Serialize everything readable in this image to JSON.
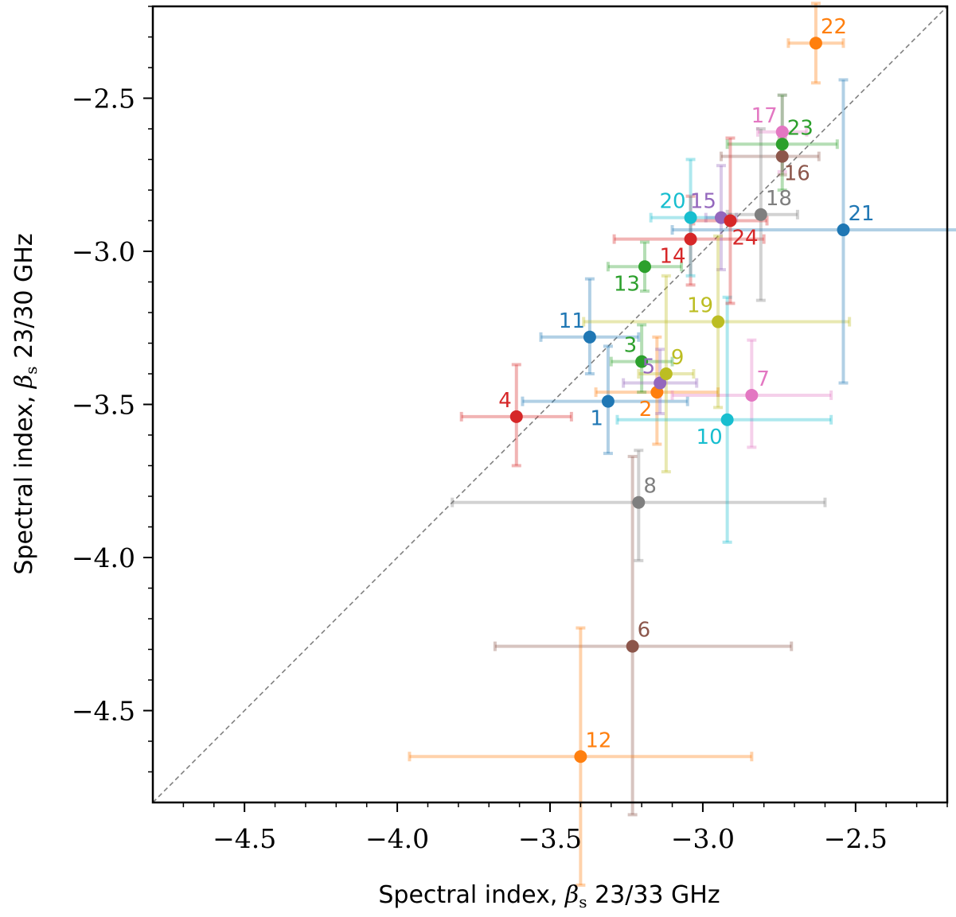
{
  "chart_data": {
    "type": "scatter",
    "xlabel": "Spectral index, β_s 23/33 GHz",
    "ylabel": "Spectral index, β_s 23/30 GHz",
    "xlim": [
      -4.8,
      -2.2
    ],
    "ylim": [
      -4.8,
      -2.2
    ],
    "x_ticks": [
      -4.5,
      -4.0,
      -3.5,
      -3.0,
      -2.5
    ],
    "y_ticks": [
      -4.5,
      -4.0,
      -3.5,
      -3.0,
      -2.5
    ],
    "x_tick_labels": [
      "−4.5",
      "−4.0",
      "−3.5",
      "−3.0",
      "−2.5"
    ],
    "y_tick_labels": [
      "−4.5",
      "−4.0",
      "−3.5",
      "−3.0",
      "−2.5"
    ],
    "reference_line": "y = x (dashed grey)",
    "grid": false,
    "points": [
      {
        "label": "1",
        "x": -3.31,
        "xerr_lo": 0.28,
        "xerr_hi": 0.26,
        "y": -3.49,
        "yerr_lo": 0.17,
        "yerr_hi": 0.18,
        "color": "#1f77b4",
        "label_pos": "bottom-left"
      },
      {
        "label": "2",
        "x": -3.15,
        "xerr_lo": 0.2,
        "xerr_hi": 0.2,
        "y": -3.46,
        "yerr_lo": 0.17,
        "yerr_hi": 0.18,
        "color": "#ff7f0e",
        "label_pos": "bottom-left"
      },
      {
        "label": "3",
        "x": -3.2,
        "xerr_lo": 0.1,
        "xerr_hi": 0.1,
        "y": -3.36,
        "yerr_lo": 0.1,
        "yerr_hi": 0.12,
        "color": "#2ca02c",
        "label_pos": "top-left"
      },
      {
        "label": "4",
        "x": -3.61,
        "xerr_lo": 0.18,
        "xerr_hi": 0.18,
        "y": -3.54,
        "yerr_lo": 0.16,
        "yerr_hi": 0.17,
        "color": "#d62728",
        "label_pos": "top-left"
      },
      {
        "label": "5",
        "x": -3.14,
        "xerr_lo": 0.12,
        "xerr_hi": 0.12,
        "y": -3.43,
        "yerr_lo": 0.1,
        "yerr_hi": 0.11,
        "color": "#9467bd",
        "label_pos": "top-left"
      },
      {
        "label": "6",
        "x": -3.23,
        "xerr_lo": 0.45,
        "xerr_hi": 0.52,
        "y": -4.29,
        "yerr_lo": 0.55,
        "yerr_hi": 0.62,
        "color": "#8c564b",
        "label_pos": "top-right"
      },
      {
        "label": "7",
        "x": -2.84,
        "xerr_lo": 0.26,
        "xerr_hi": 0.26,
        "y": -3.47,
        "yerr_lo": 0.17,
        "yerr_hi": 0.18,
        "color": "#e377c2",
        "label_pos": "top-right"
      },
      {
        "label": "8",
        "x": -3.21,
        "xerr_lo": 0.61,
        "xerr_hi": 0.61,
        "y": -3.82,
        "yerr_lo": 0.19,
        "yerr_hi": 0.17,
        "color": "#7f7f7f",
        "label_pos": "top-right"
      },
      {
        "label": "9",
        "x": -3.12,
        "xerr_lo": 0.09,
        "xerr_hi": 0.09,
        "y": -3.4,
        "yerr_lo": 0.32,
        "yerr_hi": 0.32,
        "color": "#bcbd22",
        "label_pos": "top-right"
      },
      {
        "label": "10",
        "x": -2.92,
        "xerr_lo": 0.36,
        "xerr_hi": 0.34,
        "y": -3.55,
        "yerr_lo": 0.4,
        "yerr_hi": 0.4,
        "color": "#17becf",
        "label_pos": "bottom-left"
      },
      {
        "label": "11",
        "x": -3.37,
        "xerr_lo": 0.16,
        "xerr_hi": 0.16,
        "y": -3.28,
        "yerr_lo": 0.12,
        "yerr_hi": 0.19,
        "color": "#1f77b4",
        "label_pos": "top-left"
      },
      {
        "label": "12",
        "x": -3.4,
        "xerr_lo": 0.56,
        "xerr_hi": 0.56,
        "y": -4.65,
        "yerr_lo": 0.42,
        "yerr_hi": 0.42,
        "color": "#ff7f0e",
        "label_pos": "top-right"
      },
      {
        "label": "13",
        "x": -3.19,
        "xerr_lo": 0.12,
        "xerr_hi": 0.12,
        "y": -3.05,
        "yerr_lo": 0.08,
        "yerr_hi": 0.08,
        "color": "#2ca02c",
        "label_pos": "bottom-left"
      },
      {
        "label": "14",
        "x": -3.04,
        "xerr_lo": 0.25,
        "xerr_hi": 0.24,
        "y": -2.96,
        "yerr_lo": 0.15,
        "yerr_hi": 0.14,
        "color": "#d62728",
        "label_pos": "bottom-left"
      },
      {
        "label": "15",
        "x": -2.94,
        "xerr_lo": 0.05,
        "xerr_hi": 0.05,
        "y": -2.89,
        "yerr_lo": 0.17,
        "yerr_hi": 0.17,
        "color": "#9467bd",
        "label_pos": "top-left"
      },
      {
        "label": "16",
        "x": -2.74,
        "xerr_lo": 0.2,
        "xerr_hi": 0.12,
        "y": -2.69,
        "yerr_lo": 0.06,
        "yerr_hi": 0.06,
        "color": "#8c564b",
        "label_pos": "bottom-right"
      },
      {
        "label": "17",
        "x": -2.74,
        "xerr_lo": 0.08,
        "xerr_hi": 0.08,
        "y": -2.61,
        "yerr_lo": 0.13,
        "yerr_hi": 0.12,
        "color": "#e377c2",
        "label_pos": "top-left"
      },
      {
        "label": "18",
        "x": -2.81,
        "xerr_lo": 0.11,
        "xerr_hi": 0.12,
        "y": -2.88,
        "yerr_lo": 0.28,
        "yerr_hi": 0.28,
        "color": "#7f7f7f",
        "label_pos": "top-right"
      },
      {
        "label": "19",
        "x": -2.95,
        "xerr_lo": 0.44,
        "xerr_hi": 0.43,
        "y": -3.23,
        "yerr_lo": 0.28,
        "yerr_hi": 0.28,
        "color": "#bcbd22",
        "label_pos": "top-left"
      },
      {
        "label": "20",
        "x": -3.04,
        "xerr_lo": 0.13,
        "xerr_hi": 0.13,
        "y": -2.89,
        "yerr_lo": 0.19,
        "yerr_hi": 0.19,
        "color": "#17becf",
        "label_pos": "top-left"
      },
      {
        "label": "21",
        "x": -2.54,
        "xerr_lo": 0.56,
        "xerr_hi": 0.56,
        "y": -2.93,
        "yerr_lo": 0.5,
        "yerr_hi": 0.49,
        "color": "#1f77b4",
        "label_pos": "top-right"
      },
      {
        "label": "22",
        "x": -2.63,
        "xerr_lo": 0.09,
        "xerr_hi": 0.09,
        "y": -2.32,
        "yerr_lo": 0.13,
        "yerr_hi": 0.13,
        "color": "#ff7f0e",
        "label_pos": "top-right"
      },
      {
        "label": "23",
        "x": -2.74,
        "xerr_lo": 0.18,
        "xerr_hi": 0.18,
        "y": -2.65,
        "yerr_lo": 0.15,
        "yerr_hi": 0.16,
        "color": "#2ca02c",
        "label_pos": "top-right"
      },
      {
        "label": "24",
        "x": -2.91,
        "xerr_lo": 0.12,
        "xerr_hi": 0.12,
        "y": -2.9,
        "yerr_lo": 0.27,
        "yerr_hi": 0.27,
        "color": "#d62728",
        "label_pos": "bottom-right"
      }
    ]
  }
}
